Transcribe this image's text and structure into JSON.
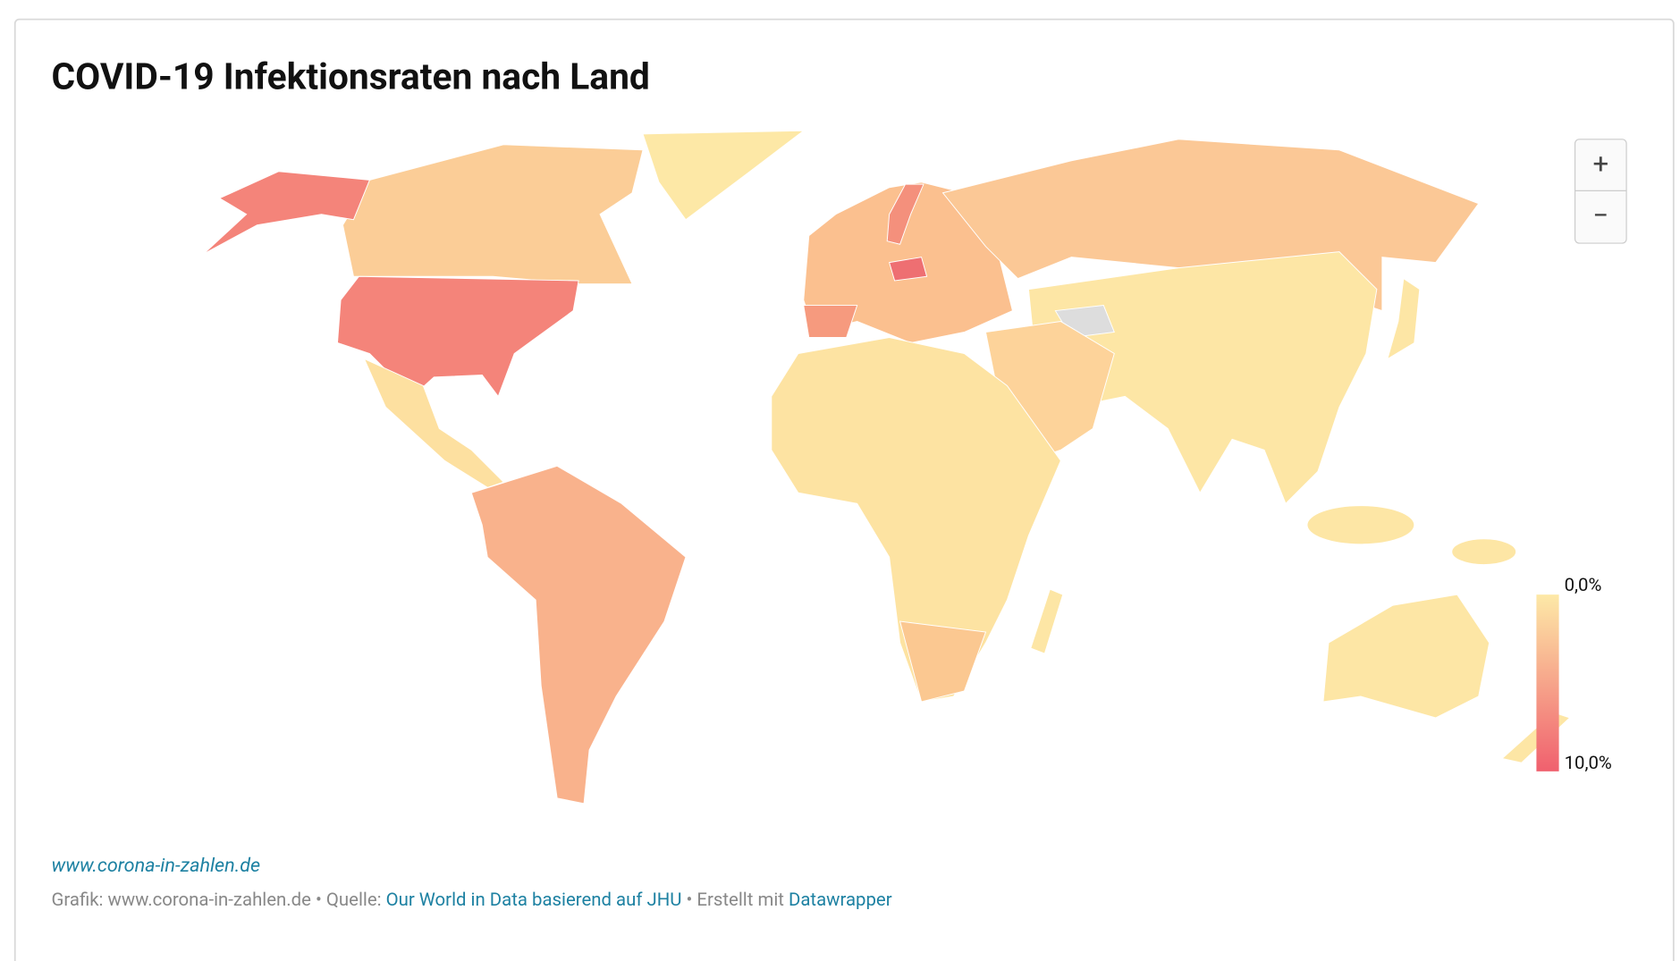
{
  "header": {
    "title": "COVID-19 Infektionsraten nach Land"
  },
  "zoom": {
    "in": "+",
    "out": "−"
  },
  "legend": {
    "min": {
      "value": 0,
      "label": "0,0%"
    },
    "max": {
      "value": 10,
      "label": "10,0%"
    },
    "colors": [
      "#fde9a7",
      "#f0606e"
    ]
  },
  "footer": {
    "link": "www.corona-in-zahlen.de",
    "credit": [
      "Grafik: www.corona-in-zahlen.de • Quelle: ",
      "Our World in Data basierend auf JHU",
      " • Erstellt mit ",
      "Datawrapper"
    ]
  }
}
